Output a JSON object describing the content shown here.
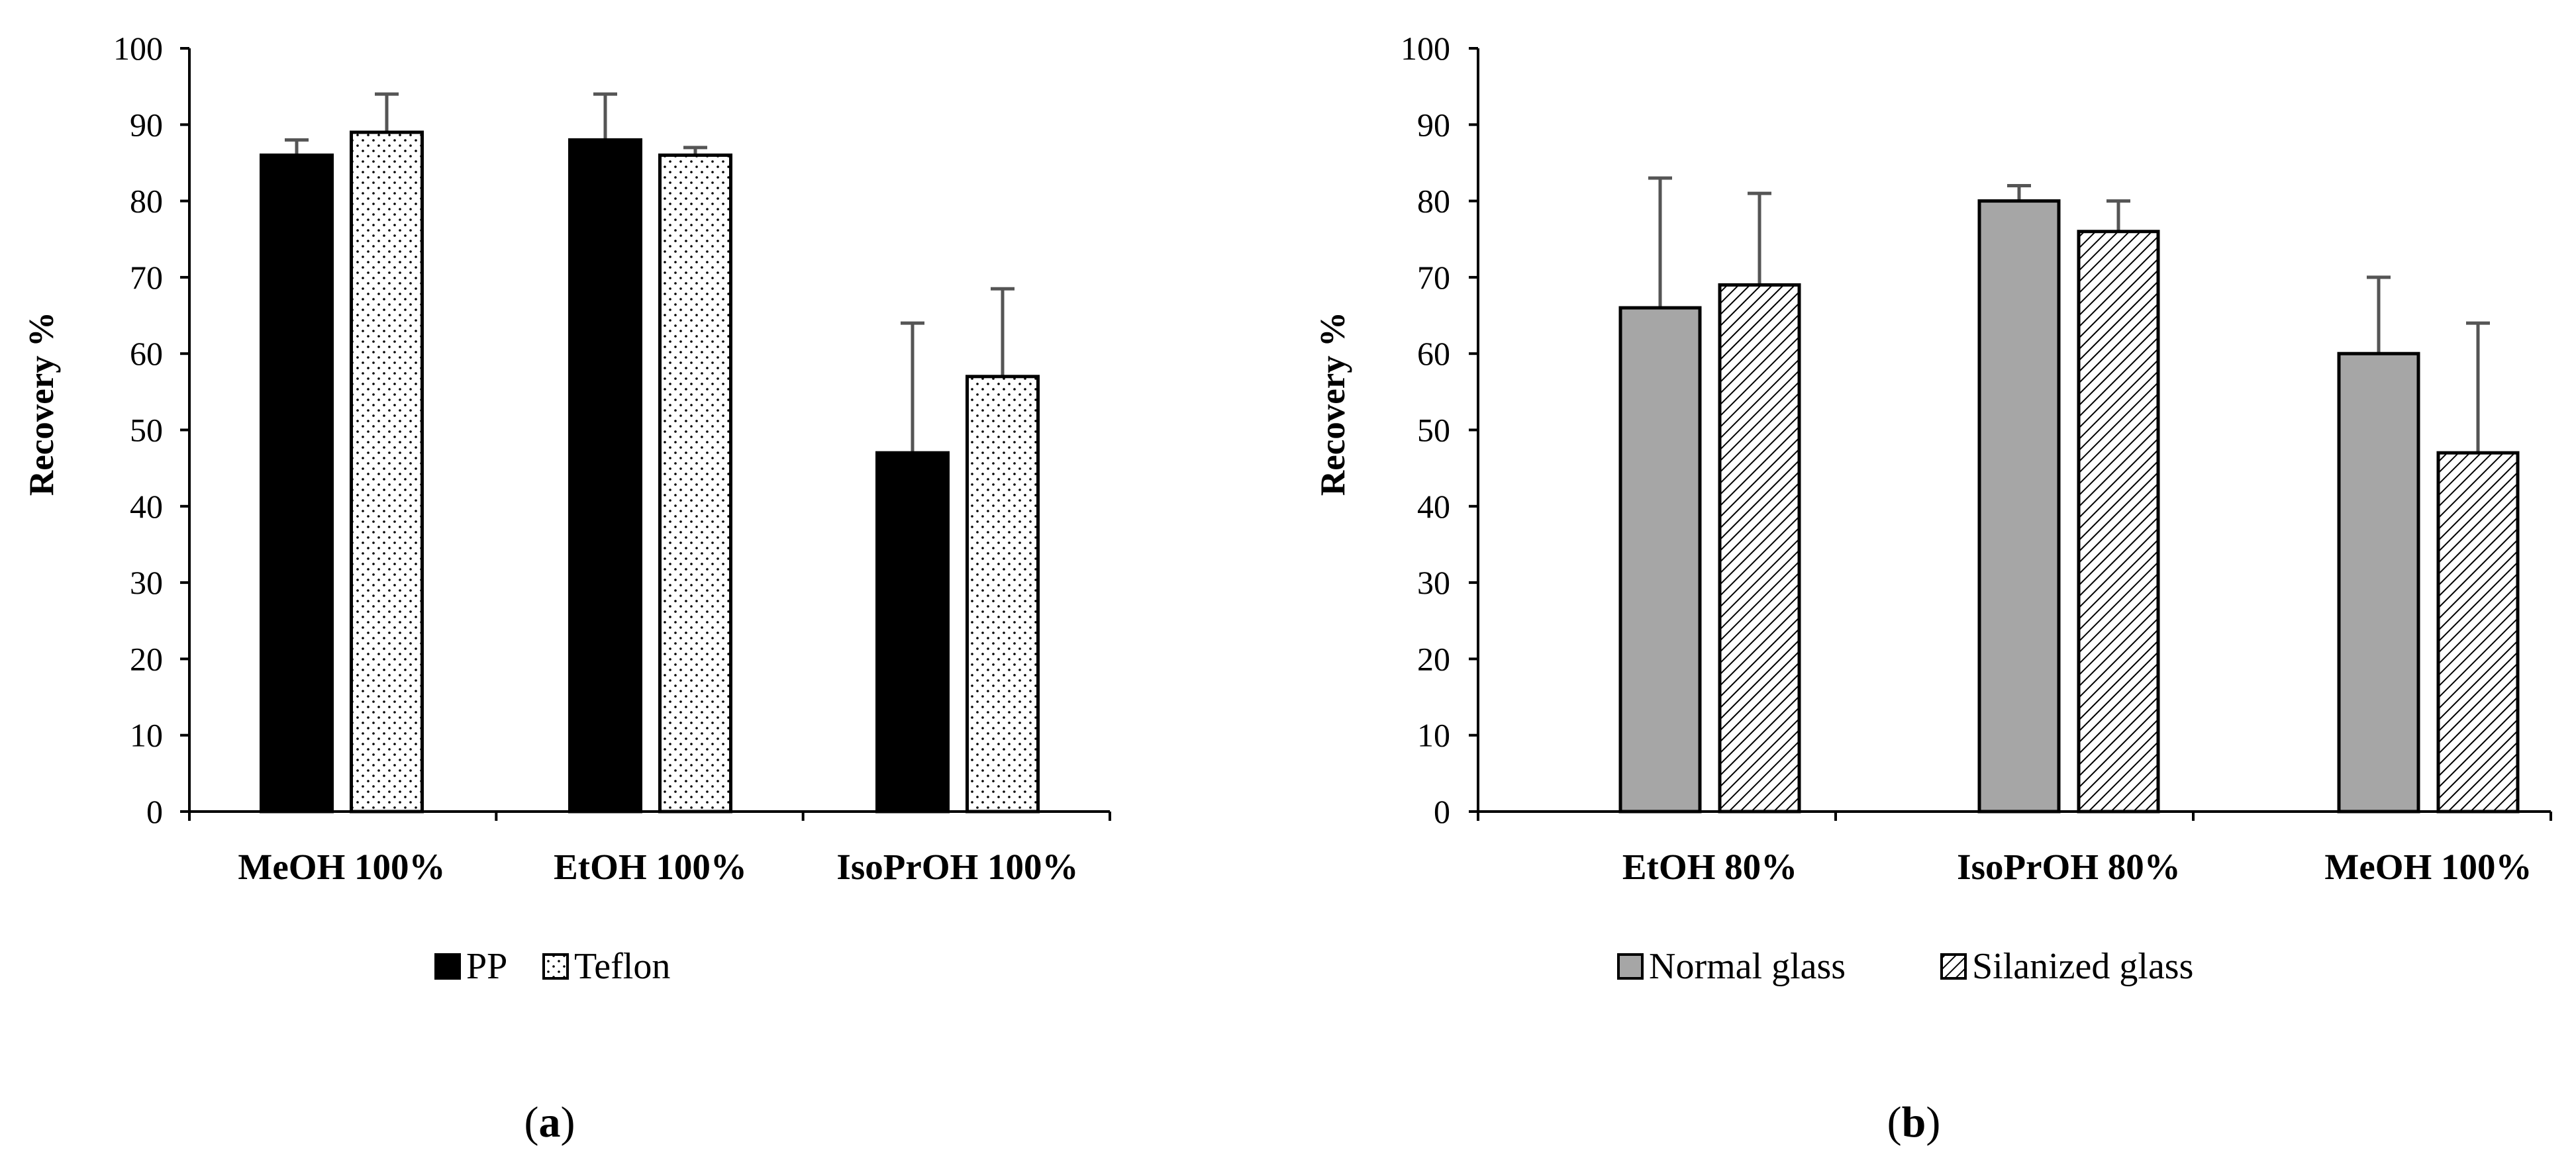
{
  "colors": {
    "axis": "#000000",
    "error_bar": "#555555",
    "pp": "#000000",
    "teflon": "#ffffff",
    "normal_glass": "#a6a6a6",
    "silanized_glass": "#ffffff"
  },
  "chart_data": [
    {
      "type": "bar",
      "panel_label": "a",
      "ylabel": "Recovery %",
      "ylim": [
        0,
        100
      ],
      "ytick_step": 10,
      "yticks": [
        "0",
        "10",
        "20",
        "30",
        "40",
        "50",
        "60",
        "70",
        "80",
        "90",
        "100"
      ],
      "categories": [
        "MeOH 100%",
        "EtOH 100%",
        "IsoPrOH 100%"
      ],
      "legend_position": "bottom",
      "series": [
        {
          "name": "PP",
          "pattern": "solid-black",
          "values": [
            86,
            88,
            47
          ],
          "errors": [
            2,
            6,
            17
          ]
        },
        {
          "name": "Teflon",
          "pattern": "dots",
          "values": [
            89,
            86,
            57
          ],
          "errors": [
            5,
            1,
            11.5
          ]
        }
      ]
    },
    {
      "type": "bar",
      "panel_label": "b",
      "ylabel": "Recovery %",
      "ylim": [
        0,
        100
      ],
      "ytick_step": 10,
      "yticks": [
        "0",
        "10",
        "20",
        "30",
        "40",
        "50",
        "60",
        "70",
        "80",
        "90",
        "100"
      ],
      "categories": [
        "EtOH 80%",
        "IsoPrOH 80%",
        "MeOH 100%"
      ],
      "legend_position": "bottom",
      "series": [
        {
          "name": "Normal glass",
          "pattern": "solid-gray",
          "values": [
            66,
            80,
            60
          ],
          "errors": [
            17,
            2,
            10
          ]
        },
        {
          "name": "Silanized glass",
          "pattern": "hatch",
          "values": [
            69,
            76,
            47
          ],
          "errors": [
            12,
            4,
            17
          ]
        }
      ]
    }
  ]
}
